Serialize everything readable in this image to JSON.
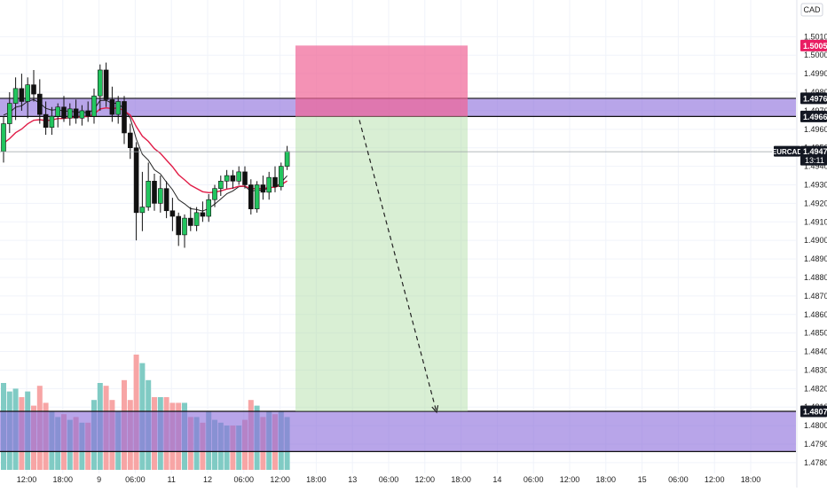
{
  "currency_label": "CAD",
  "symbol_label": "EURCAD",
  "countdown": "13:11",
  "colors": {
    "up": "#22c55e",
    "down": "#111111",
    "ema_fast": "#222222",
    "ema_slow": "#e11d48",
    "vol_up": "#80cbc4",
    "vol_down": "#f7a5a5",
    "zone": "rgba(140,110,220,0.62)",
    "stop_zone": "rgba(240,100,150,0.70)",
    "target_zone": "rgba(170,220,160,0.45)",
    "badge_dark": "#131722",
    "badge_red": "#e91e63"
  },
  "price_labels": {
    "top_zone_upper": "1.49767",
    "top_zone_lower": "1.49669",
    "current": "1.49479",
    "stop": "1.50052",
    "target_zone_upper": "1.48077"
  },
  "chart_data": {
    "type": "candlestick",
    "symbol": "EURCAD",
    "ylim": [
      1.4779,
      1.5025
    ],
    "yticks": [
      "1.50100",
      "1.50000",
      "1.49900",
      "1.49800",
      "1.49700",
      "1.49600",
      "1.49500",
      "1.49400",
      "1.49300",
      "1.49200",
      "1.49100",
      "1.49000",
      "1.48900",
      "1.48800",
      "1.48700",
      "1.48600",
      "1.48500",
      "1.48400",
      "1.48300",
      "1.48200",
      "1.48100",
      "1.48000",
      "1.47900",
      "1.47800"
    ],
    "xticks": [
      "12:00",
      "18:00",
      "9",
      "06:00",
      "11",
      "12",
      "06:00",
      "12:00",
      "18:00",
      "13",
      "06:00",
      "12:00",
      "18:00",
      "14",
      "06:00",
      "12:00",
      "18:00",
      "15",
      "06:00",
      "12:00",
      "18:00"
    ],
    "candles": [
      {
        "o": 1.4948,
        "h": 1.4967,
        "l": 1.4942,
        "c": 1.4963
      },
      {
        "o": 1.4963,
        "h": 1.498,
        "l": 1.4958,
        "c": 1.4974
      },
      {
        "o": 1.4974,
        "h": 1.4988,
        "l": 1.4965,
        "c": 1.4982
      },
      {
        "o": 1.4982,
        "h": 1.499,
        "l": 1.497,
        "c": 1.4975
      },
      {
        "o": 1.4975,
        "h": 1.4988,
        "l": 1.4966,
        "c": 1.4984
      },
      {
        "o": 1.4984,
        "h": 1.4992,
        "l": 1.4975,
        "c": 1.4979
      },
      {
        "o": 1.4979,
        "h": 1.4987,
        "l": 1.4963,
        "c": 1.4968
      },
      {
        "o": 1.4968,
        "h": 1.4975,
        "l": 1.4957,
        "c": 1.4961
      },
      {
        "o": 1.4961,
        "h": 1.4972,
        "l": 1.4957,
        "c": 1.4967
      },
      {
        "o": 1.4967,
        "h": 1.4974,
        "l": 1.4961,
        "c": 1.4972
      },
      {
        "o": 1.4972,
        "h": 1.4978,
        "l": 1.4964,
        "c": 1.4966
      },
      {
        "o": 1.4966,
        "h": 1.4974,
        "l": 1.4962,
        "c": 1.4971
      },
      {
        "o": 1.4971,
        "h": 1.4976,
        "l": 1.4963,
        "c": 1.4966
      },
      {
        "o": 1.4966,
        "h": 1.4973,
        "l": 1.4962,
        "c": 1.497
      },
      {
        "o": 1.497,
        "h": 1.4975,
        "l": 1.4964,
        "c": 1.4967
      },
      {
        "o": 1.4967,
        "h": 1.4982,
        "l": 1.4963,
        "c": 1.4978
      },
      {
        "o": 1.4978,
        "h": 1.4995,
        "l": 1.497,
        "c": 1.4992
      },
      {
        "o": 1.4992,
        "h": 1.4996,
        "l": 1.4972,
        "c": 1.4976
      },
      {
        "o": 1.4976,
        "h": 1.4983,
        "l": 1.4964,
        "c": 1.4968
      },
      {
        "o": 1.4968,
        "h": 1.4978,
        "l": 1.4963,
        "c": 1.4975
      },
      {
        "o": 1.4975,
        "h": 1.4978,
        "l": 1.4952,
        "c": 1.4958
      },
      {
        "o": 1.4958,
        "h": 1.4963,
        "l": 1.4944,
        "c": 1.495
      },
      {
        "o": 1.495,
        "h": 1.4953,
        "l": 1.49,
        "c": 1.4915
      },
      {
        "o": 1.4915,
        "h": 1.4937,
        "l": 1.4905,
        "c": 1.4918
      },
      {
        "o": 1.4918,
        "h": 1.4942,
        "l": 1.4916,
        "c": 1.4932
      },
      {
        "o": 1.4932,
        "h": 1.4936,
        "l": 1.4916,
        "c": 1.492
      },
      {
        "o": 1.492,
        "h": 1.4935,
        "l": 1.4915,
        "c": 1.4928
      },
      {
        "o": 1.4928,
        "h": 1.4932,
        "l": 1.4912,
        "c": 1.4916
      },
      {
        "o": 1.4916,
        "h": 1.4923,
        "l": 1.4905,
        "c": 1.4913
      },
      {
        "o": 1.4913,
        "h": 1.4915,
        "l": 1.4897,
        "c": 1.4903
      },
      {
        "o": 1.4903,
        "h": 1.4914,
        "l": 1.4896,
        "c": 1.4912
      },
      {
        "o": 1.4912,
        "h": 1.4918,
        "l": 1.4905,
        "c": 1.4908
      },
      {
        "o": 1.4908,
        "h": 1.4918,
        "l": 1.4905,
        "c": 1.4915
      },
      {
        "o": 1.4915,
        "h": 1.4921,
        "l": 1.491,
        "c": 1.4913
      },
      {
        "o": 1.4913,
        "h": 1.4925,
        "l": 1.491,
        "c": 1.4922
      },
      {
        "o": 1.4922,
        "h": 1.493,
        "l": 1.4918,
        "c": 1.4928
      },
      {
        "o": 1.4928,
        "h": 1.4935,
        "l": 1.4924,
        "c": 1.4932
      },
      {
        "o": 1.4932,
        "h": 1.4938,
        "l": 1.4928,
        "c": 1.4935
      },
      {
        "o": 1.4935,
        "h": 1.4938,
        "l": 1.4928,
        "c": 1.4932
      },
      {
        "o": 1.4932,
        "h": 1.494,
        "l": 1.493,
        "c": 1.4937
      },
      {
        "o": 1.4937,
        "h": 1.494,
        "l": 1.4928,
        "c": 1.493
      },
      {
        "o": 1.493,
        "h": 1.4933,
        "l": 1.4914,
        "c": 1.4917
      },
      {
        "o": 1.4917,
        "h": 1.4932,
        "l": 1.4915,
        "c": 1.493
      },
      {
        "o": 1.493,
        "h": 1.4935,
        "l": 1.4922,
        "c": 1.4926
      },
      {
        "o": 1.4926,
        "h": 1.4937,
        "l": 1.4922,
        "c": 1.4934
      },
      {
        "o": 1.4934,
        "h": 1.494,
        "l": 1.4926,
        "c": 1.4929
      },
      {
        "o": 1.4929,
        "h": 1.4942,
        "l": 1.4927,
        "c": 1.494
      },
      {
        "o": 1.494,
        "h": 1.4951,
        "l": 1.4938,
        "c": 1.4948
      }
    ],
    "volume_shown": true,
    "zones": [
      {
        "role": "resistance",
        "upper": 1.49767,
        "lower": 1.49669
      },
      {
        "role": "support",
        "upper": 1.48077,
        "lower": 1.4786
      }
    ],
    "short_position": {
      "entry": 1.49669,
      "stop": 1.50052,
      "target": 1.48077
    },
    "indicators": [
      "ema_fast",
      "ema_slow"
    ]
  }
}
